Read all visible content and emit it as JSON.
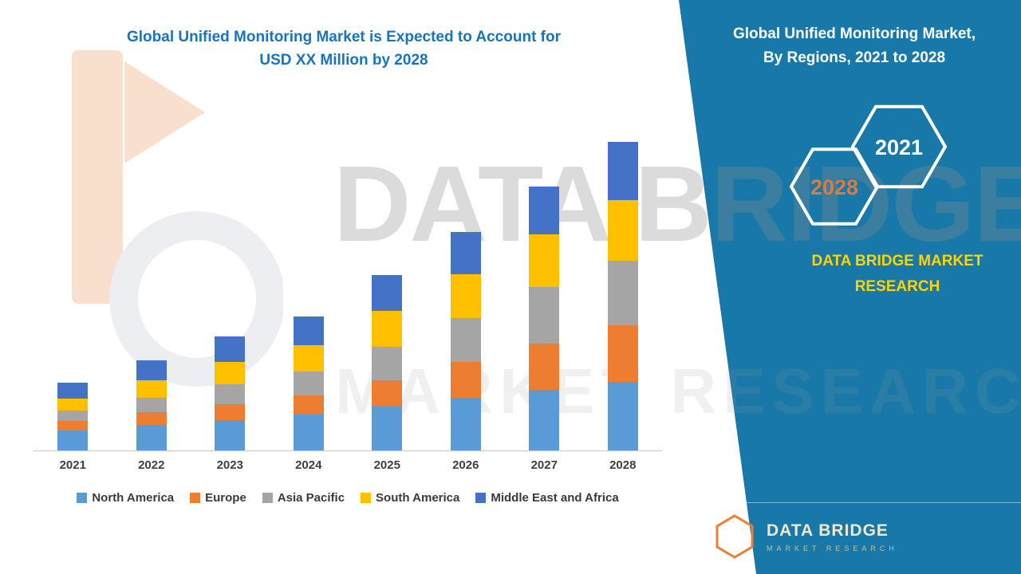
{
  "main_title": {
    "line1": "Global Unified Monitoring Market is Expected to Account for",
    "line2": "USD XX Million by 2028"
  },
  "watermark": {
    "line1": "DATA BRIDGE",
    "line2": "MARKET RESEARCH"
  },
  "side_panel": {
    "title_line1": "Global Unified Monitoring Market,",
    "title_line2": "By Regions, 2021 to 2028",
    "hexagon_back_label": "2028",
    "hexagon_front_label": "2021",
    "brand_line1": "DATA BRIDGE MARKET",
    "brand_line2": "RESEARCH",
    "footer_brand": "DATA BRIDGE",
    "footer_sub": "MARKET RESEARCH",
    "footer_logo_letter": "b"
  },
  "colors": {
    "panel_teal": "#1879A8",
    "title_blue": "#1874BE",
    "brand_yellow": "#FFD400",
    "hex_2028_orange": "#E2793C"
  },
  "chart_data": {
    "type": "bar",
    "stacked": true,
    "title": "Global Unified Monitoring Market is Expected to Account for USD XX Million by 2028",
    "categories": [
      "2021",
      "2022",
      "2023",
      "2024",
      "2025",
      "2026",
      "2027",
      "2028"
    ],
    "series": [
      {
        "name": "North America",
        "color": "#5B9BD5",
        "values": [
          25,
          32,
          38,
          45,
          55,
          65,
          75,
          85
        ]
      },
      {
        "name": "Europe",
        "color": "#ED7D31",
        "values": [
          12,
          16,
          20,
          24,
          33,
          45,
          58,
          70
        ]
      },
      {
        "name": "Asia Pacific",
        "color": "#A5A5A5",
        "values": [
          13,
          18,
          25,
          30,
          42,
          55,
          70,
          80
        ]
      },
      {
        "name": "South America",
        "color": "#FFC000",
        "values": [
          15,
          22,
          28,
          33,
          45,
          55,
          65,
          75
        ]
      },
      {
        "name": "Middle East and Africa",
        "color": "#4472C4",
        "values": [
          20,
          25,
          32,
          36,
          45,
          53,
          60,
          72
        ]
      }
    ],
    "xlabel": "",
    "ylabel": "",
    "y_axis_visible": false,
    "units": "relative (no value axis shown)",
    "legend_position": "bottom"
  }
}
